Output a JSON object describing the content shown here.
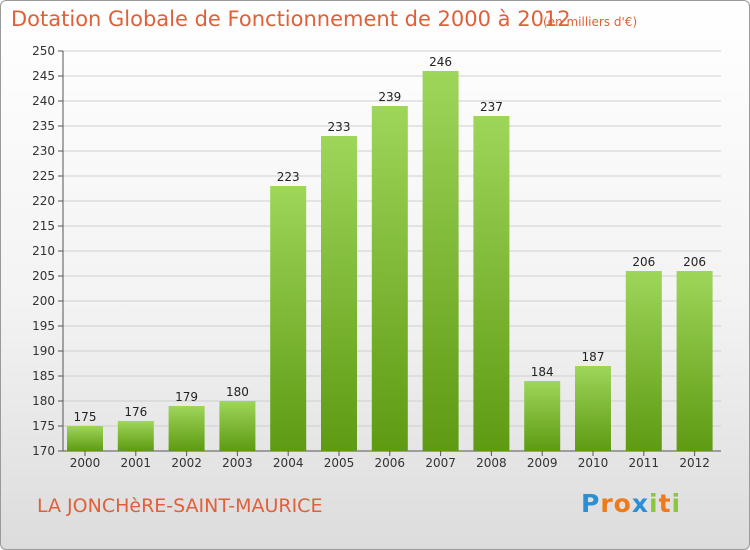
{
  "title": "Dotation Globale de Fonctionnement de 2000 à 2012",
  "unit_note": "(en milliers d'€)",
  "commune": "LA JONCHèRE-SAINT-MAURICE",
  "logo": {
    "text": "Proxiti",
    "letters": [
      "P",
      "r",
      "o",
      "x",
      "i",
      "t",
      "i"
    ],
    "colors": [
      "#2b8fd6",
      "#f07a1a",
      "#f07a1a",
      "#2b8fd6",
      "#8cc63f",
      "#f07a1a",
      "#8cc63f"
    ]
  },
  "colors": {
    "bar_top": "#9ed65a",
    "bar_bottom": "#5e9a12",
    "accent": "#e0603a"
  },
  "chart_data": {
    "type": "bar",
    "categories": [
      "2000",
      "2001",
      "2002",
      "2003",
      "2004",
      "2005",
      "2006",
      "2007",
      "2008",
      "2009",
      "2010",
      "2011",
      "2012"
    ],
    "values": [
      175,
      176,
      179,
      180,
      223,
      233,
      239,
      246,
      237,
      184,
      187,
      206,
      206
    ],
    "value_labels": [
      "175",
      "176",
      "179",
      "180",
      "223",
      "233",
      "239",
      "246",
      "237",
      "184",
      "187",
      "206",
      "206"
    ],
    "ylim": [
      170,
      250
    ],
    "yticks": [
      170,
      175,
      180,
      185,
      190,
      195,
      200,
      205,
      210,
      215,
      220,
      225,
      230,
      235,
      240,
      245,
      250
    ],
    "grid": true
  }
}
